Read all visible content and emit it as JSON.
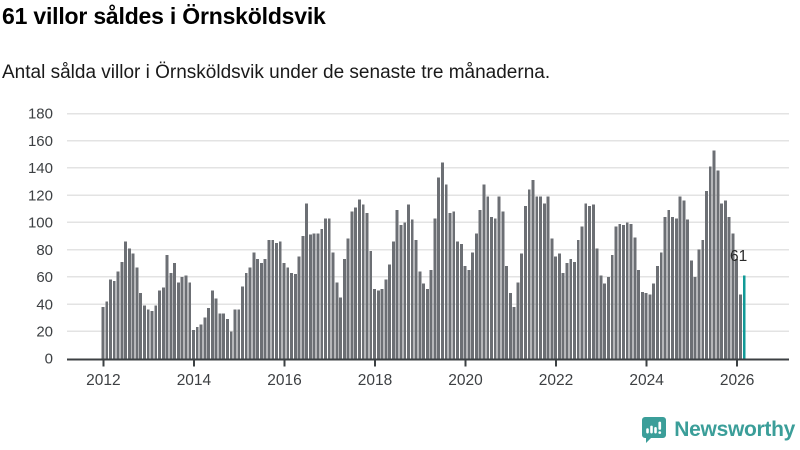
{
  "header": {
    "title": "61 villor såldes i Örnsköldsvik",
    "subtitle": "Antal sålda villor i Örnsköldsvik under de senaste tre månaderna."
  },
  "chart_data": {
    "type": "bar",
    "title": "61 villor såldes i Örnsköldsvik",
    "ylabel": "",
    "xlabel": "",
    "frequency": "monthly",
    "start": "2012-01",
    "end": "2026-03",
    "values": [
      38,
      42,
      58,
      57,
      64,
      71,
      86,
      81,
      77,
      67,
      48,
      39,
      36,
      35,
      39,
      50,
      52,
      76,
      63,
      70,
      56,
      60,
      61,
      56,
      21,
      23,
      25,
      30,
      37,
      50,
      44,
      33,
      33,
      29,
      20,
      36,
      36,
      53,
      63,
      67,
      78,
      73,
      70,
      73,
      87,
      87,
      85,
      86,
      70,
      67,
      63,
      62,
      75,
      90,
      114,
      91,
      92,
      92,
      95,
      103,
      103,
      78,
      56,
      45,
      73,
      88,
      108,
      111,
      117,
      113,
      107,
      79,
      51,
      50,
      51,
      58,
      69,
      86,
      109,
      98,
      100,
      113,
      102,
      87,
      64,
      55,
      51,
      65,
      103,
      133,
      144,
      128,
      107,
      108,
      86,
      84,
      68,
      65,
      78,
      92,
      109,
      128,
      119,
      104,
      103,
      119,
      108,
      68,
      48,
      38,
      56,
      77,
      112,
      124,
      131,
      119,
      119,
      114,
      119,
      88,
      75,
      77,
      63,
      70,
      73,
      71,
      87,
      97,
      114,
      112,
      113,
      81,
      61,
      55,
      60,
      76,
      97,
      99,
      98,
      100,
      99,
      89,
      65,
      49,
      48,
      47,
      55,
      68,
      78,
      104,
      109,
      104,
      103,
      119,
      116,
      102,
      72,
      60,
      80,
      87,
      123,
      141,
      153,
      138,
      114,
      116,
      104,
      92,
      73,
      47,
      61
    ],
    "highlight": {
      "index": "last",
      "value": 61,
      "label": "61"
    },
    "x_tick_labels": [
      "2012",
      "2014",
      "2016",
      "2018",
      "2020",
      "2022",
      "2024",
      "2026"
    ],
    "y_ticks": [
      0,
      20,
      40,
      60,
      80,
      100,
      120,
      140,
      160,
      180
    ],
    "ylim": [
      0,
      180
    ],
    "grid": "horizontal",
    "legend": "none",
    "colors": {
      "bar": "#6c6f74",
      "highlight": "#119a97",
      "grid": "#e3e3e3",
      "axis": "#3c4043",
      "tick_text": "#3d4043",
      "annotation_text": "#2b2b2b"
    }
  },
  "footer": {
    "brand": "Newsworthy",
    "logo_icon": "newsworthy-bar-chart-bubble-icon",
    "brand_color": "#3b9e99"
  }
}
